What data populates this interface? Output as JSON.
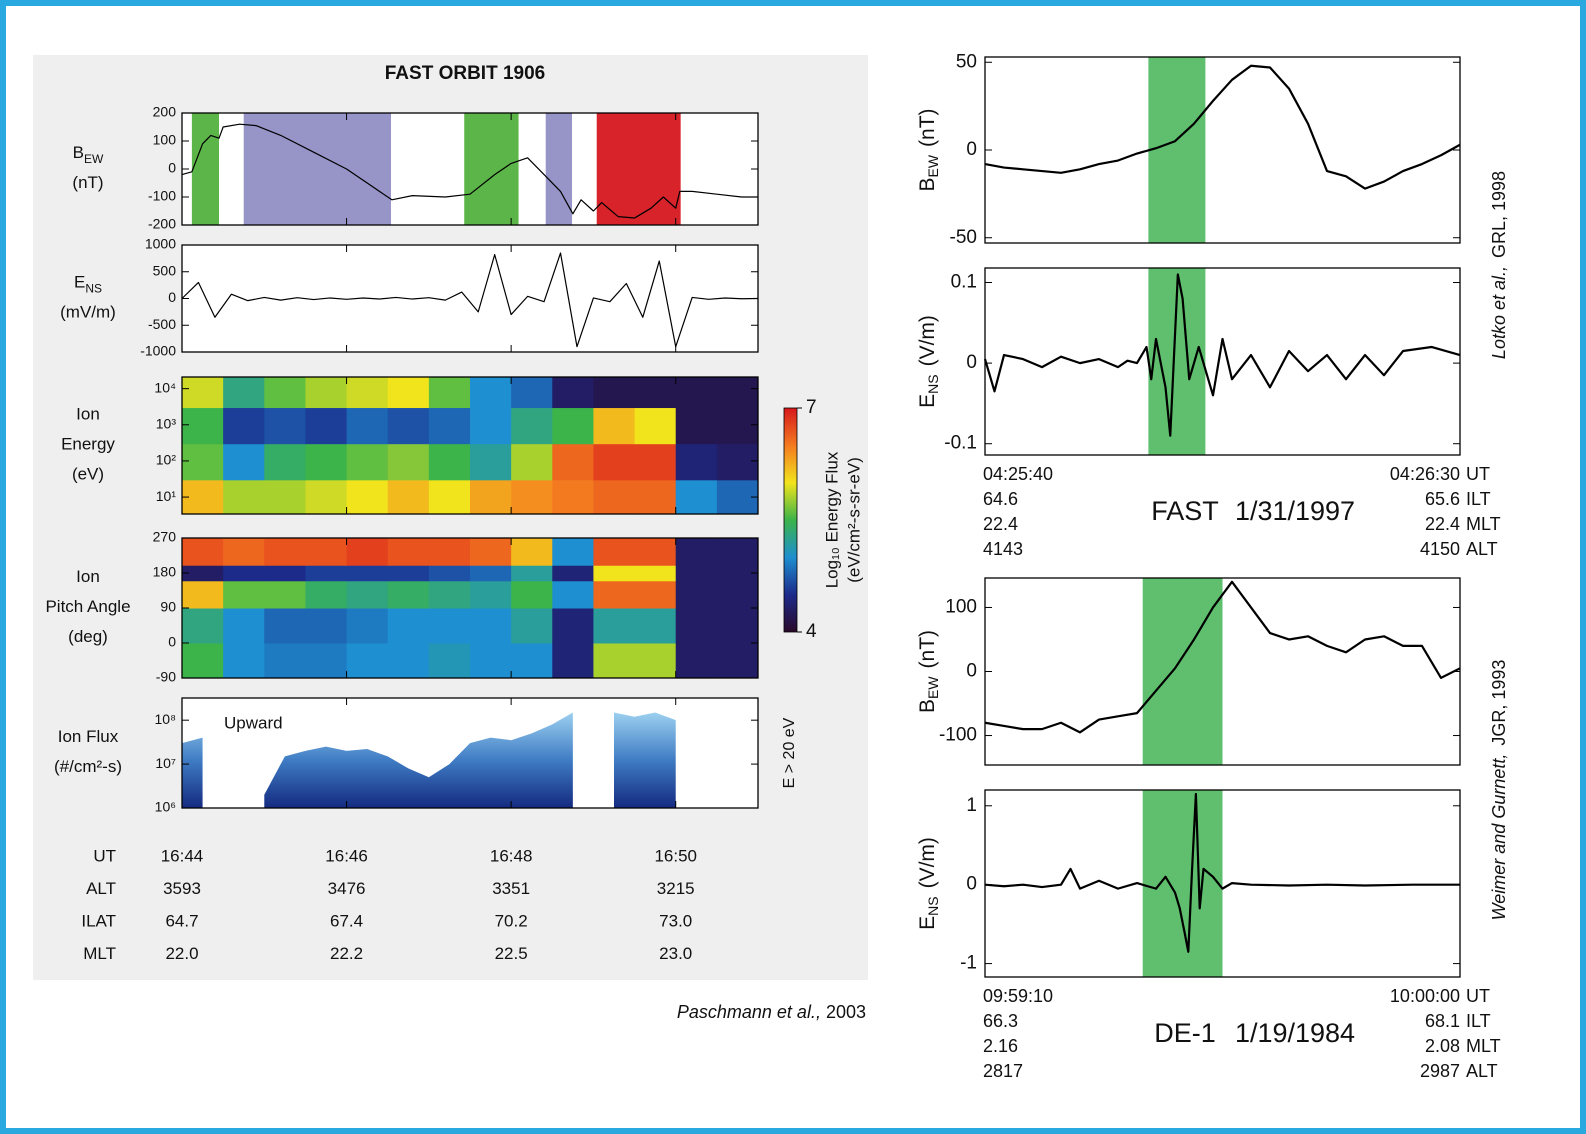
{
  "chart_data": [
    {
      "type": "line",
      "title": "FAST ORBIT 1906",
      "ylabel": [
        "B",
        "(nT)"
      ],
      "ylabel_sub": "EW",
      "xlim": [
        44,
        51
      ],
      "ylim": [
        -200,
        200
      ],
      "yticks": [
        -200,
        -100,
        0,
        100,
        200
      ],
      "color": "#000000",
      "spans": [
        {
          "from": 44.12,
          "to": 44.45,
          "color": "#5cb548"
        },
        {
          "from": 44.75,
          "to": 46.54,
          "color": "#9795c8"
        },
        {
          "from": 47.43,
          "to": 48.09,
          "color": "#5cb548"
        },
        {
          "from": 48.42,
          "to": 48.74,
          "color": "#9795c8"
        },
        {
          "from": 49.04,
          "to": 50.06,
          "color": "#d8232a"
        }
      ],
      "x": [
        44,
        44.12,
        44.25,
        44.35,
        44.45,
        44.5,
        44.7,
        44.9,
        45.2,
        45.6,
        46,
        46.3,
        46.55,
        46.8,
        47.2,
        47.5,
        47.8,
        48,
        48.2,
        48.4,
        48.6,
        48.75,
        48.85,
        49,
        49.1,
        49.3,
        49.5,
        49.7,
        49.85,
        50,
        50.05,
        50.2,
        50.5,
        50.8,
        51
      ],
      "values": [
        -20,
        -10,
        90,
        120,
        110,
        150,
        160,
        155,
        120,
        60,
        0,
        -60,
        -110,
        -95,
        -100,
        -90,
        -20,
        20,
        40,
        -20,
        -80,
        -160,
        -110,
        -150,
        -120,
        -170,
        -175,
        -140,
        -100,
        -140,
        -80,
        -80,
        -90,
        -100,
        -100
      ]
    },
    {
      "type": "line",
      "ylabel": [
        "E",
        "(mV/m)"
      ],
      "ylabel_sub": "NS",
      "xlim": [
        44,
        51
      ],
      "ylim": [
        -1000,
        1000
      ],
      "yticks": [
        -1000,
        -500,
        0,
        500,
        1000
      ],
      "color": "#000000",
      "x": [
        44,
        44.2,
        44.4,
        44.6,
        44.8,
        45,
        45.2,
        45.4,
        45.6,
        45.8,
        46,
        46.2,
        46.4,
        46.6,
        46.8,
        47,
        47.2,
        47.4,
        47.6,
        47.8,
        48,
        48.2,
        48.4,
        48.6,
        48.8,
        49,
        49.2,
        49.4,
        49.6,
        49.8,
        50,
        50.2,
        50.4,
        50.6,
        50.8,
        51
      ],
      "values": [
        0,
        300,
        -350,
        80,
        -40,
        20,
        -30,
        15,
        -20,
        10,
        -15,
        10,
        -10,
        20,
        -10,
        15,
        -30,
        120,
        -250,
        820,
        -300,
        40,
        -60,
        850,
        -900,
        10,
        -60,
        280,
        -350,
        700,
        -900,
        20,
        -15,
        10,
        -5,
        0
      ]
    },
    {
      "type": "heatmap",
      "ylabel": [
        "Ion",
        "Energy",
        "(eV)"
      ],
      "log": true,
      "xlim": [
        44,
        51
      ],
      "ylim": [
        3.4,
        21000
      ],
      "yticks": [
        {
          "value": 10,
          "label": "10¹"
        },
        {
          "value": 100,
          "label": "10²"
        },
        {
          "value": 1000,
          "label": "10³"
        },
        {
          "value": 10000,
          "label": "10⁴"
        }
      ],
      "xbins": [
        44,
        44.5,
        45,
        45.5,
        46,
        46.5,
        47,
        47.5,
        48,
        48.5,
        49,
        49.5,
        50,
        50.5,
        51
      ],
      "ybins": [
        3.4,
        30,
        300,
        3000,
        21000
      ],
      "z": [
        [
          6.2,
          5.8,
          5.8,
          5.9,
          6.0,
          6.2,
          6.0,
          6.3,
          6.4,
          6.5,
          6.6,
          6.6,
          5.0,
          4.8
        ],
        [
          5.6,
          5.0,
          5.4,
          5.5,
          5.6,
          5.7,
          5.5,
          5.2,
          5.8,
          6.6,
          6.8,
          6.8,
          4.4,
          4.3
        ],
        [
          5.5,
          4.6,
          4.7,
          4.6,
          4.8,
          4.7,
          4.8,
          5.0,
          5.3,
          5.5,
          6.2,
          6.0,
          4.2,
          4.2
        ],
        [
          5.9,
          5.3,
          5.6,
          5.8,
          5.9,
          6.0,
          5.6,
          5.0,
          4.8,
          4.3,
          4.2,
          4.2,
          4.2,
          4.2
        ]
      ],
      "colorbar": {
        "label": [
          "Log₁₀ Energy Flux",
          "(eV/cm²-s-sr-eV)"
        ],
        "zlim": [
          4,
          7
        ],
        "zticks": [
          4,
          7
        ],
        "colors": [
          "#2a0a2a",
          "#1c2a8a",
          "#1e8fd0",
          "#3cb44a",
          "#f2e41c",
          "#f47a20",
          "#d7191c"
        ]
      }
    },
    {
      "type": "heatmap",
      "ylabel": [
        "Ion",
        "Pitch Angle",
        "(deg)"
      ],
      "xlim": [
        44,
        51
      ],
      "ylim": [
        -90,
        270
      ],
      "yticks": [
        -90,
        0,
        90,
        180,
        270
      ],
      "xbins": [
        44,
        44.5,
        45,
        45.5,
        46,
        46.5,
        47,
        47.5,
        48,
        48.5,
        49,
        49.5,
        50,
        50.5,
        51
      ],
      "ybins": [
        -90,
        0,
        90,
        160,
        200,
        270
      ],
      "z": [
        [
          5.5,
          5.0,
          4.9,
          4.9,
          5.0,
          5.0,
          5.1,
          5.0,
          5.0,
          4.4,
          5.8,
          5.8,
          4.3,
          4.3
        ],
        [
          5.3,
          5.0,
          4.8,
          4.8,
          4.9,
          5.0,
          5.0,
          5.0,
          5.2,
          4.4,
          5.2,
          5.2,
          4.3,
          4.3
        ],
        [
          6.2,
          5.6,
          5.6,
          5.4,
          5.3,
          5.4,
          5.3,
          5.2,
          5.5,
          5.0,
          6.6,
          6.6,
          4.3,
          4.3
        ],
        [
          4.3,
          4.5,
          4.5,
          4.6,
          4.6,
          4.6,
          4.7,
          4.8,
          5.2,
          4.4,
          6.0,
          6.0,
          4.3,
          4.3
        ],
        [
          6.7,
          6.6,
          6.7,
          6.7,
          6.8,
          6.7,
          6.7,
          6.6,
          6.2,
          5.0,
          6.7,
          6.7,
          4.3,
          4.3
        ]
      ]
    },
    {
      "type": "area",
      "ylabel": [
        "Ion Flux",
        "(#/cm²-s)"
      ],
      "log": true,
      "annotation": "Upward",
      "side_label": "E > 20 eV",
      "xlim": [
        44,
        51
      ],
      "ylim": [
        1000000,
        320000000
      ],
      "yticks": [
        {
          "value": 1000000,
          "label": "10⁶"
        },
        {
          "value": 10000000,
          "label": "10⁷"
        },
        {
          "value": 100000000,
          "label": "10⁸"
        }
      ],
      "xticks": [
        {
          "value": 44,
          "label": "16:44"
        },
        {
          "value": 46,
          "label": "16:46"
        },
        {
          "value": 48,
          "label": "16:48"
        },
        {
          "value": 50,
          "label": "16:50"
        }
      ],
      "x": [
        44,
        44.25,
        44.5,
        44.75,
        45,
        45.25,
        45.5,
        45.75,
        46,
        46.25,
        46.5,
        46.75,
        47,
        47.25,
        47.5,
        47.75,
        48,
        48.25,
        48.5,
        48.75,
        49,
        49.25,
        49.5,
        49.75,
        50,
        50.25,
        50.5,
        50.75,
        51
      ],
      "values": [
        30000000,
        40000000,
        null,
        null,
        2000000,
        15000000,
        20000000,
        25000000,
        20000000,
        22000000,
        15000000,
        8000000,
        5000000,
        10000000,
        30000000,
        40000000,
        35000000,
        50000000,
        80000000,
        150000000,
        null,
        150000000,
        120000000,
        150000000,
        100000000,
        null,
        null,
        null,
        null
      ],
      "ephemeris": {
        "labels": [
          "UT",
          "ALT",
          "ILAT",
          "MLT"
        ],
        "rows": [
          [
            "3593",
            "3476",
            "3351",
            "3215"
          ],
          [
            "64.7",
            "67.4",
            "70.2",
            "73.0"
          ],
          [
            "22.0",
            "22.2",
            "22.5",
            "23.0"
          ]
        ]
      },
      "citation": {
        "authors": "Paschmann et al.,",
        "year": "2003"
      }
    },
    {
      "type": "line",
      "ylabel": [
        "B",
        "(nT)"
      ],
      "ylabel_sub": "EW",
      "xlim": [
        0,
        50
      ],
      "ylim": [
        -53,
        53
      ],
      "yticks": [
        -50,
        0,
        50
      ],
      "color": "#000000",
      "spans": [
        {
          "from": 17.2,
          "to": 23.2,
          "color": "#5fbf6e"
        }
      ],
      "x": [
        0,
        2,
        4,
        6,
        8,
        10,
        12,
        14,
        16,
        18,
        20,
        22,
        24,
        26,
        28,
        30,
        32,
        34,
        36,
        38,
        40,
        42,
        44,
        46,
        48,
        50
      ],
      "values": [
        -8,
        -10,
        -11,
        -12,
        -13,
        -11,
        -8,
        -6,
        -2,
        1,
        5,
        15,
        28,
        40,
        48,
        47,
        35,
        15,
        -12,
        -15,
        -22,
        -18,
        -12,
        -8,
        -3,
        3
      ]
    },
    {
      "type": "line",
      "ylabel": [
        "E",
        "(V/m)"
      ],
      "ylabel_sub": "NS",
      "xlim": [
        0,
        50
      ],
      "ylim": [
        -0.114,
        0.118
      ],
      "yticks": [
        -0.1,
        0,
        0.1
      ],
      "color": "#000000",
      "spans": [
        {
          "from": 17.2,
          "to": 23.2,
          "color": "#5fbf6e"
        }
      ],
      "xticks": [
        {
          "value": 0,
          "label": "04:25:40"
        },
        {
          "value": 50,
          "label": "04:26:30"
        }
      ],
      "x": [
        0,
        1,
        2,
        4,
        6,
        8,
        10,
        12,
        14,
        15,
        16,
        17,
        17.5,
        18,
        19,
        19.5,
        20.3,
        20.8,
        21.5,
        22.5,
        24,
        25,
        26,
        28,
        30,
        32,
        34,
        36,
        38,
        40,
        42,
        44,
        47,
        50
      ],
      "values": [
        0.005,
        -0.035,
        0.01,
        0.005,
        -0.005,
        0.008,
        0.0,
        0.005,
        -0.005,
        0.003,
        0.0,
        0.02,
        -0.02,
        0.03,
        -0.03,
        -0.09,
        0.11,
        0.08,
        -0.02,
        0.02,
        -0.04,
        0.03,
        -0.02,
        0.01,
        -0.03,
        0.015,
        -0.01,
        0.01,
        -0.02,
        0.01,
        -0.015,
        0.015,
        0.02,
        0.01
      ],
      "mission": "FAST",
      "date": "1/31/1997",
      "ephemeris": {
        "labels": [
          "UT",
          "ILT",
          "MLT",
          "ALT"
        ],
        "start": [
          "64.6",
          "22.4",
          "4143"
        ],
        "end": [
          "65.6",
          "22.4",
          "4150"
        ]
      },
      "citation": {
        "authors": "Lotko et al.,",
        "journal": "GRL, 1998"
      }
    },
    {
      "type": "line",
      "ylabel": [
        "B",
        "(nT)"
      ],
      "ylabel_sub": "EW",
      "xlim": [
        0,
        50
      ],
      "ylim": [
        -146,
        146
      ],
      "yticks": [
        -100,
        0,
        100
      ],
      "color": "#000000",
      "spans": [
        {
          "from": 16.6,
          "to": 25,
          "color": "#5fbf6e"
        }
      ],
      "x": [
        0,
        2,
        4,
        6,
        8,
        10,
        12,
        14,
        16,
        18,
        20,
        22,
        24,
        26,
        28,
        30,
        32,
        34,
        36,
        38,
        40,
        42,
        44,
        46,
        48,
        50
      ],
      "values": [
        -80,
        -85,
        -90,
        -90,
        -80,
        -95,
        -75,
        -70,
        -65,
        -30,
        5,
        50,
        100,
        140,
        100,
        60,
        50,
        55,
        40,
        30,
        50,
        55,
        40,
        40,
        -10,
        5
      ]
    },
    {
      "type": "line",
      "ylabel": [
        "E",
        "(V/m)"
      ],
      "ylabel_sub": "NS",
      "xlim": [
        0,
        50
      ],
      "ylim": [
        -1.17,
        1.2
      ],
      "yticks": [
        -1,
        0,
        1
      ],
      "color": "#000000",
      "spans": [
        {
          "from": 16.6,
          "to": 25,
          "color": "#5fbf6e"
        }
      ],
      "xticks": [
        {
          "value": 0,
          "label": "09:59:10"
        },
        {
          "value": 50,
          "label": "10:00:00"
        }
      ],
      "x": [
        0,
        2,
        4,
        6,
        8,
        9,
        10,
        12,
        14,
        16,
        18,
        19,
        20,
        20.5,
        21,
        21.4,
        21.8,
        22.2,
        22.6,
        23,
        24,
        25,
        26,
        28,
        32,
        36,
        40,
        45,
        50
      ],
      "values": [
        0,
        -0.02,
        0.0,
        -0.03,
        0.0,
        0.2,
        -0.05,
        0.05,
        -0.05,
        0.02,
        -0.05,
        0.1,
        -0.1,
        -0.3,
        -0.6,
        -0.85,
        0.2,
        1.15,
        -0.3,
        0.2,
        0.1,
        -0.05,
        0.02,
        0.0,
        -0.01,
        0.0,
        -0.01,
        0.0,
        0.0
      ],
      "mission": "DE-1",
      "date": "1/19/1984",
      "ephemeris": {
        "labels": [
          "UT",
          "ILT",
          "MLT",
          "ALT"
        ],
        "start": [
          "66.3",
          "2.16",
          "2817"
        ],
        "end": [
          "68.1",
          "2.08",
          "2987"
        ]
      },
      "citation": {
        "authors": "Weimer and Gurnett,",
        "journal": "JGR, 1993"
      }
    }
  ]
}
